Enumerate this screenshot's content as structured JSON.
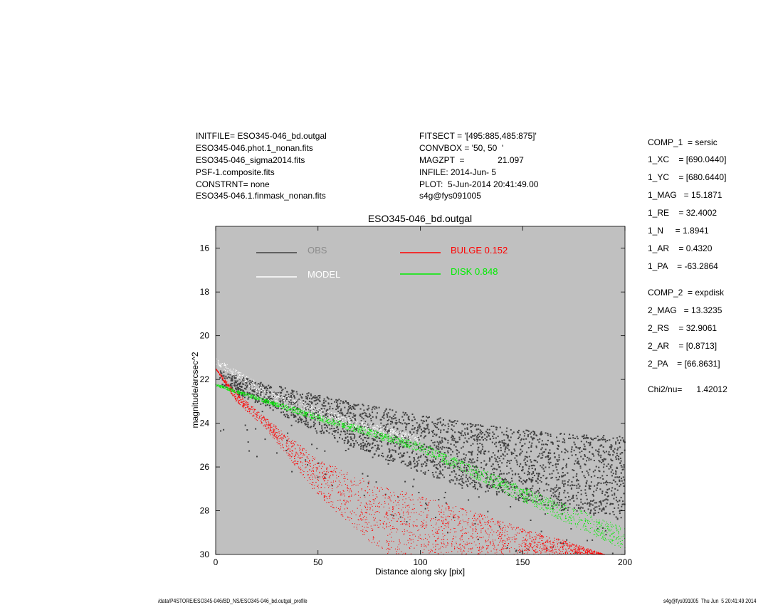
{
  "header_left": [
    "INITFILE= ESO345-046_bd.outgal",
    "ESO345-046.phot.1_nonan.fits",
    "ESO345-046_sigma2014.fits",
    "PSF-1.composite.fits",
    "CONSTRNT= none",
    "ESO345-046.1.finmask_nonan.fits"
  ],
  "header_middle": [
    "FITSECT = '[495:885,485:875]'",
    "CONVBOX = '50, 50  '",
    "MAGZPT  =              21.097",
    "INFILE: 2014-Jun- 5",
    "PLOT:  5-Jun-2014 20:41:49.00",
    "s4g@fys091005"
  ],
  "params_comp1": [
    "COMP_1  = sersic",
    "1_XC    = [690.0440]",
    "1_YC    = [680.6440]",
    "1_MAG   = 15.1871",
    "1_RE    = 32.4002",
    "1_N     = 1.8941",
    "1_AR    = 0.4320",
    "1_PA    = -63.2864"
  ],
  "params_comp2": [
    "COMP_2  = expdisk",
    "2_MAG   = 13.3235",
    "2_RS    = 32.9061",
    "2_AR    = [0.8713]",
    "2_PA    = [66.8631]"
  ],
  "chi2": "Chi2/nu=      1.42012",
  "footer_left": "/data/P4STORE/ESO345-046/BD_NS/ESO345-046_bd.outgal_profile",
  "footer_right": "s4g@fys091005  Thu Jun  5 20:41:49 2014",
  "chart_data": {
    "type": "scatter",
    "title": "ESO345-046_bd.outgal",
    "xlabel": "Distance along sky [pix]",
    "ylabel": "magnitude/arcsec^2",
    "xlim": [
      0,
      200
    ],
    "ylim": [
      15,
      30
    ],
    "y_inverted": true,
    "xticks": [
      "0",
      "50",
      "100",
      "150",
      "200"
    ],
    "yticks": [
      "16",
      "18",
      "20",
      "22",
      "24",
      "26",
      "28",
      "30"
    ],
    "plot_background": "#c0c0c0",
    "grid": false,
    "legend_placement": "top",
    "legend": [
      {
        "label": "OBS",
        "color": "#404040",
        "label_color": "#8c8c8c"
      },
      {
        "label": "MODEL",
        "color": "#ffffff",
        "label_color": "#ffffff"
      },
      {
        "label": "BULGE  0.152",
        "color": "#ff0000",
        "label_color": "#ff0000"
      },
      {
        "label": "DISK  0.848",
        "color": "#00ee00",
        "label_color": "#00ee00"
      }
    ],
    "series": [
      {
        "name": "OBS",
        "color": "#404040",
        "envelope": {
          "x": [
            2,
            25,
            50,
            75,
            100,
            125,
            150,
            175,
            200
          ],
          "ymin": [
            21.6,
            22.2,
            22.7,
            23.2,
            23.6,
            24.0,
            24.3,
            24.5,
            24.6
          ],
          "ymax": [
            22.3,
            23.3,
            24.4,
            25.4,
            26.3,
            27.0,
            27.6,
            28.1,
            28.4
          ]
        }
      },
      {
        "name": "MODEL",
        "color": "#ffffff",
        "envelope": {
          "x": [
            0,
            25,
            50,
            75,
            100
          ],
          "ymin": [
            21.0,
            22.4,
            23.3,
            24.0,
            24.6
          ],
          "ymax": [
            21.3,
            22.9,
            23.7,
            24.4,
            24.9
          ]
        }
      },
      {
        "name": "BULGE  0.152",
        "color": "#ff0000",
        "envelope": {
          "x": [
            0,
            10,
            25,
            50,
            82,
            100,
            125,
            150,
            175,
            190
          ],
          "ymin": [
            21.5,
            22.6,
            23.8,
            25.65,
            26.9,
            27.3,
            28.0,
            28.8,
            29.5,
            30.0
          ],
          "ymax": [
            21.5,
            23.0,
            24.3,
            27.3,
            30.0,
            30.0,
            30.0,
            30.0,
            30.0,
            30.0
          ]
        }
      },
      {
        "name": "DISK  0.848",
        "color": "#00ee00",
        "envelope": {
          "x": [
            0,
            50,
            100,
            150,
            200
          ],
          "ymin": [
            22.2,
            23.6,
            24.9,
            26.9,
            28.8
          ],
          "ymax": [
            22.3,
            23.9,
            25.3,
            27.6,
            29.8
          ]
        }
      }
    ]
  }
}
